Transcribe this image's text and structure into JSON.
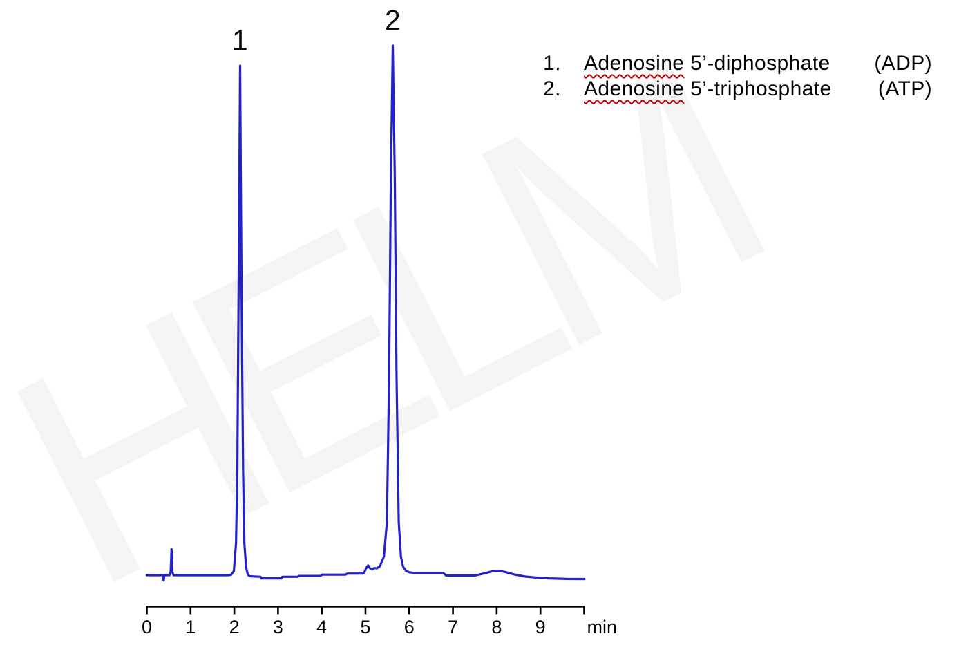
{
  "watermark": {
    "text": "HELM"
  },
  "legend": {
    "items": [
      {
        "num": "1.",
        "word": "Adenosine",
        "rest": " 5’-diphosphate",
        "abbr": "(ADP)"
      },
      {
        "num": "2.",
        "word": "Adenosine",
        "rest": " 5’-triphosphate",
        "abbr": "(ATP)"
      }
    ]
  },
  "chart_data": {
    "type": "line",
    "title": "",
    "xlabel": "min",
    "ylabel": "",
    "x_range": [
      0,
      10
    ],
    "x_ticks": [
      0,
      1,
      2,
      3,
      4,
      5,
      6,
      7,
      8,
      9
    ],
    "grid": false,
    "legend_position": "top-right",
    "line_color": "#2222cc",
    "axis_color": "#000000",
    "squiggle_color": "#c00000",
    "peaks": [
      {
        "label": "1",
        "compound": "Adenosine 5’-diphosphate (ADP)",
        "retention_min": 2.13,
        "height": 96.2
      },
      {
        "label": "2",
        "compound": "Adenosine 5’-triphosphate (ATP)",
        "retention_min": 5.62,
        "height": 100
      }
    ],
    "trace": [
      [
        0.0,
        0
      ],
      [
        0.36,
        0
      ],
      [
        0.385,
        -1.0
      ],
      [
        0.4,
        0
      ],
      [
        0.52,
        0
      ],
      [
        0.545,
        0.6
      ],
      [
        0.565,
        4.9
      ],
      [
        0.585,
        0.6
      ],
      [
        0.61,
        0
      ],
      [
        0.9,
        0
      ],
      [
        1.4,
        0
      ],
      [
        1.88,
        0
      ],
      [
        1.93,
        0.1
      ],
      [
        1.99,
        0.8
      ],
      [
        2.04,
        6
      ],
      [
        2.07,
        20
      ],
      [
        2.1,
        55
      ],
      [
        2.133,
        96.2
      ],
      [
        2.165,
        55
      ],
      [
        2.2,
        20
      ],
      [
        2.23,
        6
      ],
      [
        2.27,
        1.5
      ],
      [
        2.31,
        0.1
      ],
      [
        2.35,
        -0.2
      ],
      [
        2.6,
        -0.3
      ],
      [
        2.62,
        -0.6
      ],
      [
        3.08,
        -0.6
      ],
      [
        3.1,
        -0.3
      ],
      [
        3.45,
        -0.3
      ],
      [
        3.48,
        -0.15
      ],
      [
        3.97,
        -0.15
      ],
      [
        4.01,
        0.1
      ],
      [
        4.54,
        0.1
      ],
      [
        4.58,
        0.3
      ],
      [
        4.93,
        0.3
      ],
      [
        4.97,
        0.5
      ],
      [
        5.02,
        1.4
      ],
      [
        5.06,
        1.85
      ],
      [
        5.1,
        1.35
      ],
      [
        5.15,
        1.1
      ],
      [
        5.2,
        1.35
      ],
      [
        5.26,
        1.3
      ],
      [
        5.33,
        1.7
      ],
      [
        5.42,
        3.5
      ],
      [
        5.49,
        10
      ],
      [
        5.54,
        38
      ],
      [
        5.58,
        75
      ],
      [
        5.624,
        100
      ],
      [
        5.67,
        75
      ],
      [
        5.71,
        38
      ],
      [
        5.76,
        10
      ],
      [
        5.81,
        3.5
      ],
      [
        5.86,
        1.6
      ],
      [
        5.93,
        0.8
      ],
      [
        6.0,
        0.55
      ],
      [
        6.1,
        0.45
      ],
      [
        6.78,
        0.45
      ],
      [
        6.84,
        -0.05
      ],
      [
        7.2,
        -0.05
      ],
      [
        7.5,
        -0.05
      ],
      [
        7.7,
        0.3
      ],
      [
        7.9,
        0.75
      ],
      [
        8.03,
        0.85
      ],
      [
        8.2,
        0.6
      ],
      [
        8.4,
        0.15
      ],
      [
        8.65,
        -0.25
      ],
      [
        8.9,
        -0.45
      ],
      [
        9.2,
        -0.6
      ],
      [
        9.6,
        -0.7
      ],
      [
        10.0,
        -0.72
      ]
    ]
  }
}
